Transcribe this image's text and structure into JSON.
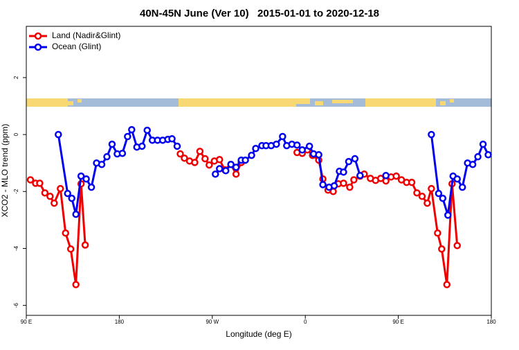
{
  "chart_data": {
    "type": "line",
    "title": "40N-45N June (Ver 10)   2015-01-01 to 2020-12-18",
    "x_label": "Longitude (deg E)",
    "y_label": "XCO2 - MLO trend (ppm)",
    "xlim": [
      90,
      540
    ],
    "ylim": [
      -6.35,
      3.8
    ],
    "xticks": [
      {
        "value": 90,
        "label": "90 E"
      },
      180,
      {
        "value": 270,
        "label": "90 W"
      },
      {
        "value": 360,
        "label": "0"
      },
      {
        "value": 450,
        "label": "90 E"
      },
      {
        "value": 540,
        "label": "180"
      }
    ],
    "yticks": [
      -6,
      -4,
      -2,
      0,
      2
    ],
    "legend": "top-left",
    "series": [
      {
        "name": "Land (Nadir&Glint)",
        "color": "#ee0000",
        "x": [
          94,
          99,
          103,
          108,
          113,
          117,
          123,
          128,
          133,
          138,
          143,
          147,
          null,
          239,
          243,
          248,
          253,
          258,
          263,
          267,
          272,
          277,
          282,
          288,
          293,
          298,
          null,
          352,
          357,
          362,
          367,
          373,
          377,
          382,
          387,
          392,
          397,
          403,
          407,
          413,
          417,
          423,
          428,
          433,
          438,
          443,
          448,
          453,
          458,
          463,
          468,
          473,
          478,
          482,
          488,
          492,
          497,
          502,
          507
        ],
        "values": [
          -1.59,
          -1.71,
          -1.71,
          -2.05,
          -2.17,
          -2.41,
          -1.9,
          -3.46,
          -4.02,
          -5.27,
          -1.73,
          -3.88,
          null,
          -0.68,
          -0.83,
          -0.93,
          -0.98,
          -0.59,
          -0.85,
          -1.07,
          -0.93,
          -0.88,
          -1.24,
          -1.05,
          -1.39,
          -0.98,
          null,
          -0.63,
          -0.66,
          -0.54,
          -0.73,
          -0.9,
          -1.56,
          -1.95,
          -2.0,
          -1.73,
          -1.71,
          -1.85,
          -1.59,
          -1.46,
          -1.39,
          -1.54,
          -1.61,
          -1.54,
          -1.63,
          -1.49,
          -1.46,
          -1.59,
          -1.68,
          -1.68,
          -2.05,
          -2.17,
          -2.41,
          -1.9,
          -3.46,
          -4.02,
          -5.27,
          -1.73,
          -3.9
        ]
      },
      {
        "name": "Ocean (Glint)",
        "color": "#0000ee",
        "x": [
          121,
          130,
          134,
          138,
          143,
          148,
          153,
          158,
          163,
          168,
          173,
          178,
          183,
          188,
          192,
          197,
          202,
          207,
          212,
          217,
          222,
          227,
          231,
          236,
          null,
          273,
          277,
          283,
          288,
          293,
          298,
          302,
          308,
          312,
          318,
          322,
          327,
          332,
          338,
          342,
          347,
          352,
          357,
          364,
          368,
          373,
          377,
          383,
          388,
          393,
          397,
          402,
          408,
          413,
          null,
          438,
          null,
          482,
          489,
          493,
          498,
          503,
          507,
          512,
          517,
          522,
          527,
          532,
          537
        ],
        "values": [
          0,
          -2.07,
          -2.24,
          -2.8,
          -1.46,
          -1.56,
          -1.85,
          -1.0,
          -1.05,
          -0.78,
          -0.34,
          -0.68,
          -0.66,
          -0.07,
          0.17,
          -0.44,
          -0.41,
          0.15,
          -0.2,
          -0.2,
          -0.2,
          -0.17,
          -0.15,
          -0.41,
          null,
          -1.39,
          -1.2,
          -1.27,
          -1.05,
          -1.15,
          -0.9,
          -0.9,
          -0.73,
          -0.49,
          -0.39,
          -0.39,
          -0.39,
          -0.34,
          -0.07,
          -0.39,
          -0.34,
          -0.37,
          -0.54,
          -0.41,
          -0.68,
          -0.71,
          -1.76,
          -1.85,
          -1.8,
          -1.29,
          -1.32,
          -0.95,
          -0.85,
          -1.44,
          null,
          -1.44,
          null,
          0,
          -2.07,
          -2.24,
          -2.83,
          -1.46,
          -1.56,
          -1.85,
          -1.0,
          -1.05,
          -0.78,
          -0.34,
          -0.71
        ]
      }
    ]
  }
}
